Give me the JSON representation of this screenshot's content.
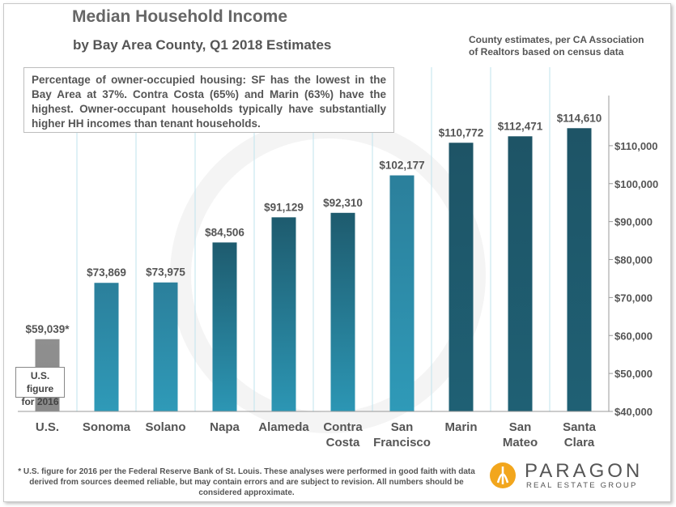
{
  "title": "Median Household Income",
  "subtitle": "by Bay Area County, Q1 2018 Estimates",
  "source_note": "County estimates, per CA Association\nof Realtors based on census data",
  "annotation": "Percentage of owner-occupied housing: SF has the lowest in the Bay Area at 37%. Contra Costa (65%) and Marin (63%) have the highest. Owner-occupant households typically have substantially higher HH incomes than tenant households.",
  "us_note": "U.S. figure\nfor 2016",
  "footer": "* U.S. figure for 2016 per the Federal Reserve Bank of St. Louis. These analyses were performed in good faith with data derived from sources deemed reliable, but may contain errors and are subject to revision. All numbers should be considered approximate.",
  "logo": {
    "name": "PARAGON",
    "tagline": "REAL ESTATE GROUP",
    "icon": "paragon-logo-icon"
  },
  "colors": {
    "us_bar": "#8c8c8c",
    "teal_light": "#2d93b0",
    "teal_dark": "#1d5a6c",
    "grid": "#bfe3ee",
    "text": "#555555"
  },
  "chart_data": {
    "type": "bar",
    "title": "Median Household Income",
    "subtitle": "by Bay Area County, Q1 2018 Estimates",
    "categories": [
      [
        "U.S."
      ],
      [
        "Sonoma"
      ],
      [
        "Solano"
      ],
      [
        "Napa"
      ],
      [
        "Alameda"
      ],
      [
        "Contra",
        "Costa"
      ],
      [
        "San",
        "Francisco"
      ],
      [
        "Marin"
      ],
      [
        "San",
        "Mateo"
      ],
      [
        "Santa",
        "Clara"
      ]
    ],
    "values": [
      59039,
      73869,
      73975,
      84506,
      91129,
      92310,
      102177,
      110772,
      112471,
      114610
    ],
    "value_labels": [
      "$59,039*",
      "$73,869",
      "$73,975",
      "$84,506",
      "$91,129",
      "$92,310",
      "$102,177",
      "$110,772",
      "$112,471",
      "$114,610"
    ],
    "bar_color_keys": [
      "us_bar",
      "teal_light",
      "teal_light",
      "teal_mid",
      "teal_mid",
      "teal_mid",
      "teal_light",
      "teal_dark",
      "teal_dark",
      "teal_dark"
    ],
    "ylim": [
      40000,
      120000
    ],
    "yticks": [
      40000,
      50000,
      60000,
      70000,
      80000,
      90000,
      100000,
      110000
    ],
    "ytick_labels": [
      "$40,000",
      "$50,000",
      "$60,000",
      "$70,000",
      "$80,000",
      "$90,000",
      "$100,000",
      "$110,000"
    ],
    "yaxis_side": "right",
    "xlabel": "",
    "ylabel": ""
  }
}
